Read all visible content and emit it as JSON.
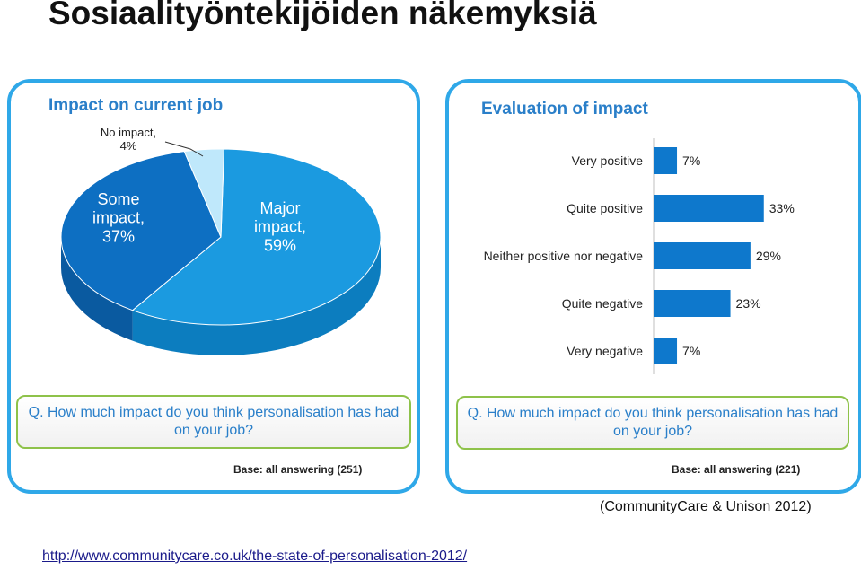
{
  "slide_title": "Sosiaalityöntekijöiden näkemyksiä",
  "source_note": "(CommunityCare & Unison 2012)",
  "source_url": "http://www.communitycare.co.uk/the-state-of-personalisation-2012/",
  "colors": {
    "accent": "#2fa8e8",
    "dark_blue": "#0d6fc2",
    "mid_blue": "#1b9ae0",
    "light_blue": "#bfe8fb",
    "bar": "#0e78cc",
    "green_border": "#8ec24a"
  },
  "chart_data": [
    {
      "type": "pie",
      "title": "Impact on current job",
      "slices": [
        {
          "label_lines": [
            "Major",
            "impact,",
            "59%"
          ],
          "name": "Major impact",
          "value": 59
        },
        {
          "label_lines": [
            "Some",
            "impact,",
            "37%"
          ],
          "name": "Some impact",
          "value": 37
        },
        {
          "label_lines": [
            "No impact,",
            "4%"
          ],
          "name": "No impact",
          "value": 4
        }
      ],
      "question": "Q. How much impact do you think personalisation has had on your job?",
      "base": "Base: all answering (251)"
    },
    {
      "type": "bar",
      "orientation": "horizontal",
      "title": "Evaluation of impact",
      "categories": [
        "Very positive",
        "Quite positive",
        "Neither positive nor negative",
        "Quite negative",
        "Very negative"
      ],
      "values": [
        7,
        33,
        29,
        23,
        7
      ],
      "value_labels": [
        "7%",
        "33%",
        "29%",
        "23%",
        "7%"
      ],
      "question": "Q. How much impact do you think personalisation has had on your job?",
      "base": "Base: all answering (221)"
    }
  ]
}
